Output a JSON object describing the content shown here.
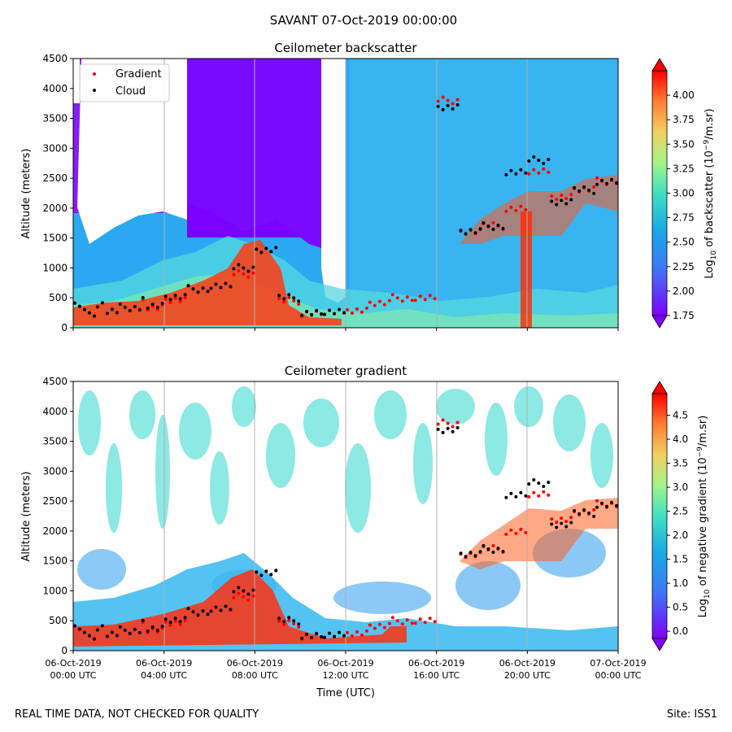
{
  "suptitle": "SAVANT 07-Oct-2019 00:00:00",
  "footer": {
    "left": "REAL TIME DATA, NOT CHECKED FOR QUALITY",
    "right": "Site: ISS1"
  },
  "xlabel": "Time (UTC)",
  "x_ticks": [
    {
      "hour": 0,
      "line1": "06-Oct-2019",
      "line2": "00:00 UTC"
    },
    {
      "hour": 4,
      "line1": "06-Oct-2019",
      "line2": "04:00 UTC"
    },
    {
      "hour": 8,
      "line1": "06-Oct-2019",
      "line2": "08:00 UTC"
    },
    {
      "hour": 12,
      "line1": "06-Oct-2019",
      "line2": "12:00 UTC"
    },
    {
      "hour": 16,
      "line1": "06-Oct-2019",
      "line2": "16:00 UTC"
    },
    {
      "hour": 20,
      "line1": "06-Oct-2019",
      "line2": "20:00 UTC"
    },
    {
      "hour": 24,
      "line1": "07-Oct-2019",
      "line2": "00:00 UTC"
    }
  ],
  "legend": {
    "gradient": "Gradient",
    "cloud": "Cloud"
  },
  "colors": {
    "gradient_marker": "#ff0000",
    "cloud_marker": "#000000"
  },
  "chart_data": [
    {
      "type": "heatmap",
      "title": "Ceilometer backscatter",
      "ylabel": "Altitude (meters)",
      "ylim": [
        0,
        4500
      ],
      "xlim_hours": [
        0,
        24
      ],
      "y_ticks": [
        0,
        500,
        1000,
        1500,
        2000,
        2500,
        3000,
        3500,
        4000,
        4500
      ],
      "colorbar": {
        "label": "Log10 of backscatter (10^-9/m.sr)",
        "label_parts": {
          "a": "Log",
          "b": "10",
          "c": " of backscatter (10",
          "d": "−9",
          "e": "/m.sr)"
        },
        "range": [
          1.75,
          4.25
        ],
        "ticks": [
          "1.75",
          "2.00",
          "2.25",
          "2.50",
          "2.75",
          "3.00",
          "3.25",
          "3.50",
          "3.75",
          "4.00"
        ]
      },
      "series": [
        {
          "name": "Gradient",
          "hours": [
            0.5,
            1.5,
            2.5,
            3.5,
            4.5,
            5.5,
            6.5,
            7.5,
            8.5,
            9.5,
            10.5,
            11.5,
            12.5,
            13.5,
            14.5,
            15.5,
            16.5,
            17.5,
            18.5,
            19.5,
            20.5,
            21.5,
            22.5,
            23.5
          ],
          "altitude": [
            250,
            280,
            300,
            350,
            450,
            650,
            700,
            900,
            1300,
            450,
            250,
            250,
            300,
            400,
            500,
            500,
            3800,
            1600,
            1700,
            2000,
            2600,
            2200,
            2300,
            2450
          ]
        },
        {
          "name": "Cloud",
          "hours": [
            0.5,
            1.5,
            2.5,
            3.5,
            4.5,
            5.5,
            6.5,
            7.5,
            8.5,
            9.5,
            10.5,
            11.5,
            16.5,
            17.5,
            18.5,
            19.5,
            20.5,
            21.5,
            22.5,
            23.5
          ],
          "altitude": [
            250,
            280,
            300,
            380,
            500,
            650,
            700,
            1000,
            1300,
            500,
            260,
            250,
            3700,
            1600,
            1700,
            2600,
            2800,
            2100,
            2300,
            2450
          ]
        }
      ]
    },
    {
      "type": "heatmap",
      "title": "Ceilometer gradient",
      "ylabel": "Altitude (meters)",
      "ylim": [
        0,
        4500
      ],
      "xlim_hours": [
        0,
        24
      ],
      "y_ticks": [
        0,
        500,
        1000,
        1500,
        2000,
        2500,
        3000,
        3500,
        4000,
        4500
      ],
      "colorbar": {
        "label": "Log10 of negative gradient (10^-9/m.sr)",
        "label_parts": {
          "a": "Log",
          "b": "10",
          "c": " of negative gradient (10",
          "d": "−9",
          "e": "/m.sr)"
        },
        "range": [
          -0.15,
          4.95
        ],
        "ticks": [
          "0.0",
          "0.5",
          "1.0",
          "1.5",
          "2.0",
          "2.5",
          "3.0",
          "3.5",
          "4.0",
          "4.5"
        ]
      },
      "series": [
        {
          "name": "Gradient",
          "hours": [
            0.5,
            1.5,
            2.5,
            3.5,
            4.5,
            5.5,
            6.5,
            7.5,
            8.5,
            9.5,
            10.5,
            11.5,
            12.5,
            13.5,
            14.5,
            15.5,
            16.5,
            17.5,
            18.5,
            19.5,
            20.5,
            21.5,
            22.5,
            23.5
          ],
          "altitude": [
            250,
            280,
            300,
            350,
            450,
            650,
            700,
            900,
            1300,
            450,
            250,
            250,
            300,
            400,
            500,
            500,
            3800,
            1600,
            1700,
            2000,
            2600,
            2200,
            2300,
            2450
          ]
        },
        {
          "name": "Cloud",
          "hours": [
            0.5,
            1.5,
            2.5,
            3.5,
            4.5,
            5.5,
            6.5,
            7.5,
            8.5,
            9.5,
            10.5,
            11.5,
            16.5,
            17.5,
            18.5,
            19.5,
            20.5,
            21.5,
            22.5,
            23.5
          ],
          "altitude": [
            250,
            280,
            300,
            380,
            500,
            650,
            700,
            1000,
            1300,
            500,
            260,
            250,
            3700,
            1600,
            1700,
            2600,
            2800,
            2100,
            2300,
            2450
          ]
        }
      ]
    }
  ]
}
